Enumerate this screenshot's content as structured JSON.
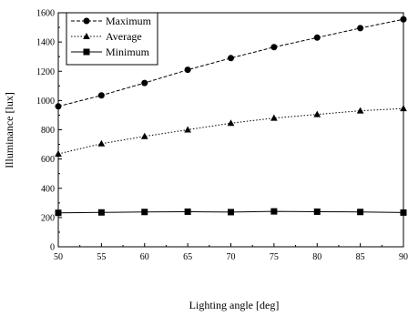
{
  "chart_data": {
    "type": "line",
    "xlabel": "Lighting angle [deg]",
    "ylabel": "Illuminance [lux]",
    "x": [
      50,
      55,
      60,
      65,
      70,
      75,
      80,
      85,
      90
    ],
    "xlim": [
      50,
      90
    ],
    "ylim": [
      0,
      1600
    ],
    "xticks": [
      "50",
      "55",
      "60",
      "65",
      "70",
      "75",
      "80",
      "85",
      "90"
    ],
    "yticks": [
      "0",
      "200",
      "400",
      "600",
      "800",
      "1000",
      "1200",
      "1400",
      "1600"
    ],
    "grid": false,
    "legend_position": "top-left",
    "series": [
      {
        "name": "Maximum",
        "marker": "circle",
        "line": "dashed",
        "values": [
          960,
          1035,
          1120,
          1210,
          1290,
          1365,
          1430,
          1495,
          1555
        ]
      },
      {
        "name": "Average",
        "marker": "triangle",
        "line": "dotted",
        "values": [
          635,
          705,
          755,
          800,
          845,
          880,
          905,
          930,
          945
        ]
      },
      {
        "name": "Minimum",
        "marker": "square",
        "line": "solid",
        "values": [
          232,
          235,
          238,
          240,
          237,
          242,
          240,
          238,
          234
        ]
      }
    ]
  }
}
